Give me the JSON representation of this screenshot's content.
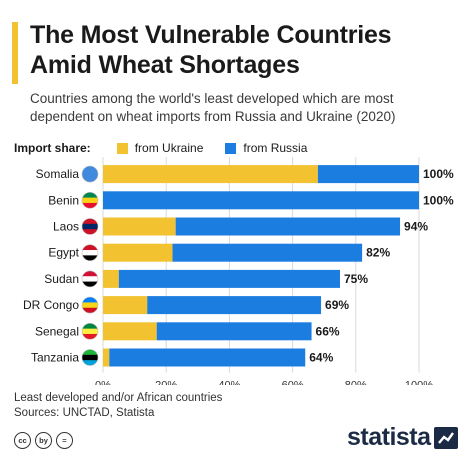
{
  "header": {
    "title_line1": "The Most Vulnerable Countries",
    "title_line2": "Amid Wheat Shortages",
    "subtitle_line1": "Countries among the world's least developed which are most",
    "subtitle_line2": "dependent on wheat imports from Russia and Ukraine (2020)"
  },
  "legend": {
    "label": "Import share:",
    "items": [
      "from Ukraine",
      "from Russia"
    ]
  },
  "colors": {
    "ukraine": "#f2c230",
    "russia": "#1c7de0",
    "accent": "#f2c230",
    "brand": "#1b2b45"
  },
  "chart_data": {
    "type": "bar",
    "orientation": "horizontal",
    "stacked": true,
    "categories": [
      "Somalia",
      "Benin",
      "Laos",
      "Egypt",
      "Sudan",
      "DR Congo",
      "Senegal",
      "Tanzania"
    ],
    "series": [
      {
        "name": "from Ukraine",
        "values": [
          68,
          0,
          23,
          22,
          5,
          14,
          17,
          2
        ]
      },
      {
        "name": "from Russia",
        "values": [
          32,
          100,
          71,
          60,
          70,
          55,
          49,
          62
        ]
      }
    ],
    "totals": [
      "100%",
      "100%",
      "94%",
      "82%",
      "75%",
      "69%",
      "66%",
      "64%"
    ],
    "x_ticks": [
      "0%",
      "20%",
      "40%",
      "60%",
      "80%",
      "100%"
    ],
    "xlim": [
      0,
      100
    ],
    "grid": true,
    "legend_position": "top"
  },
  "footer": {
    "note": "Least developed and/or African countries",
    "sources": "Sources: UNCTAD, Statista",
    "license_icons": [
      "cc",
      "by",
      "="
    ],
    "brand": "statista"
  }
}
